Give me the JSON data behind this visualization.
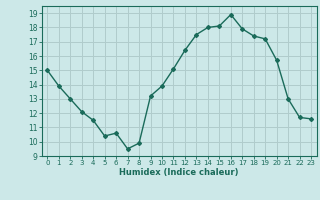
{
  "x": [
    0,
    1,
    2,
    3,
    4,
    5,
    6,
    7,
    8,
    9,
    10,
    11,
    12,
    13,
    14,
    15,
    16,
    17,
    18,
    19,
    20,
    21,
    22,
    23
  ],
  "y": [
    15.0,
    13.9,
    13.0,
    12.1,
    11.5,
    10.4,
    10.6,
    9.5,
    9.9,
    13.2,
    13.9,
    15.1,
    16.4,
    17.5,
    18.0,
    18.1,
    18.9,
    17.9,
    17.4,
    17.2,
    15.7,
    13.0,
    11.7,
    11.6
  ],
  "line_color": "#1a6b5a",
  "bg_color": "#cce8e8",
  "grid_color": "#b0cccc",
  "xlabel": "Humidex (Indice chaleur)",
  "ylim": [
    9,
    19.5
  ],
  "xlim": [
    -0.5,
    23.5
  ],
  "yticks": [
    9,
    10,
    11,
    12,
    13,
    14,
    15,
    16,
    17,
    18,
    19
  ],
  "xticks": [
    0,
    1,
    2,
    3,
    4,
    5,
    6,
    7,
    8,
    9,
    10,
    11,
    12,
    13,
    14,
    15,
    16,
    17,
    18,
    19,
    20,
    21,
    22,
    23
  ]
}
